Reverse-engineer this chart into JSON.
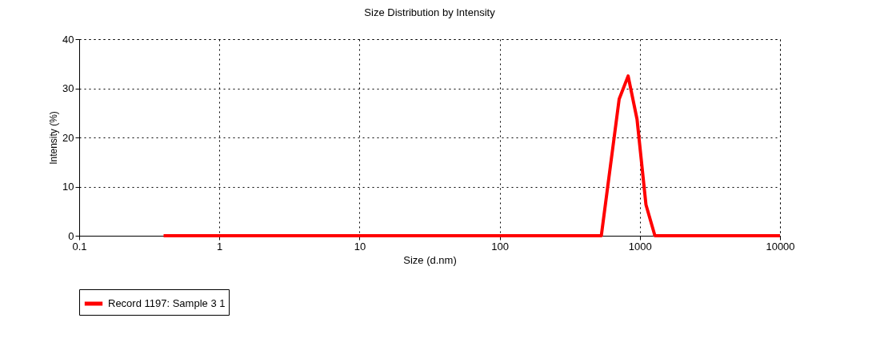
{
  "chart_data": {
    "type": "line",
    "title": "Size Distribution by Intensity",
    "xlabel": "Size (d.nm)",
    "ylabel": "Intensity (%)",
    "x": [
      0.4,
      531,
      712,
      825,
      955,
      1106,
      1281,
      10000
    ],
    "series": [
      {
        "name": "Record 1197: Sample 3 1",
        "color": "#ff0000",
        "values": [
          0,
          0,
          27.8,
          32.5,
          23.7,
          6.3,
          0,
          0
        ]
      }
    ],
    "log": "x",
    "xlim": [
      0.1,
      10000
    ],
    "xticks": [
      0.1,
      1,
      10,
      100,
      1000,
      10000
    ],
    "ylim": [
      0,
      40
    ],
    "yticks": [
      0,
      10,
      20,
      30,
      40
    ],
    "grid": true,
    "legend": "bottom",
    "line_style": "solid",
    "marker": "none"
  }
}
